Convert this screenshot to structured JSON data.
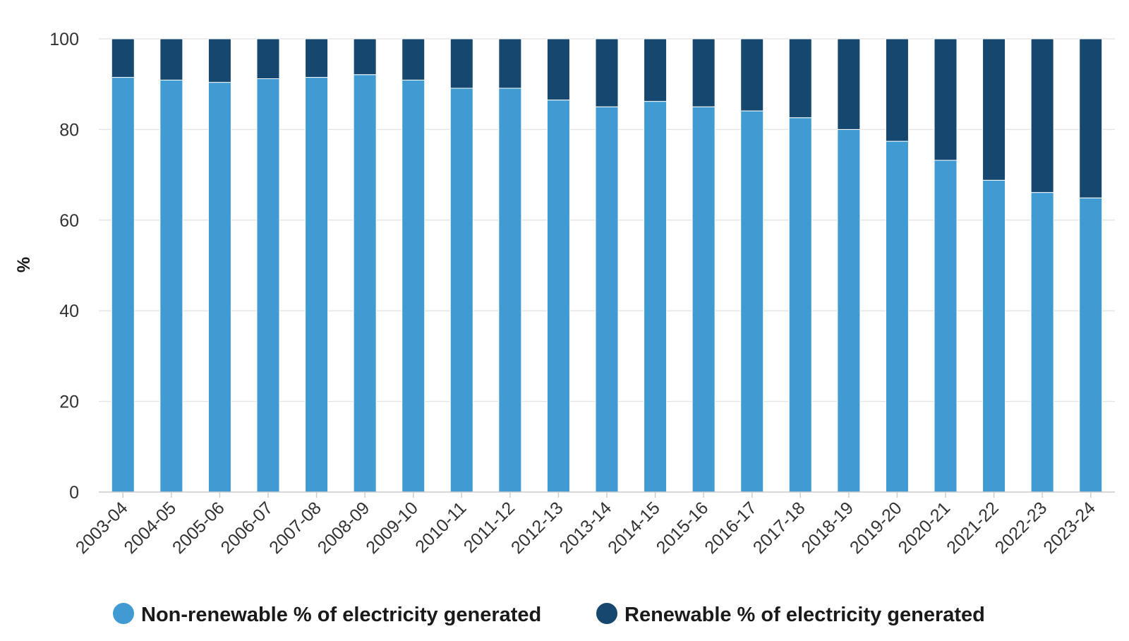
{
  "chart_data": {
    "type": "bar",
    "stacked": true,
    "title": "",
    "xlabel": "",
    "ylabel": "%",
    "ylim": [
      0,
      100
    ],
    "yticks": [
      0,
      20,
      40,
      60,
      80,
      100
    ],
    "grid": true,
    "legend_position": "bottom-center",
    "categories": [
      "2003-04",
      "2004-05",
      "2005-06",
      "2006-07",
      "2007-08",
      "2008-09",
      "2009-10",
      "2010-11",
      "2011-12",
      "2012-13",
      "2013-14",
      "2014-15",
      "2015-16",
      "2016-17",
      "2017-18",
      "2018-19",
      "2019-20",
      "2020-21",
      "2021-22",
      "2022-23",
      "2023-24"
    ],
    "series": [
      {
        "name": "Non-renewable % of electricity generated",
        "color": "#3f9bd1",
        "values": [
          91.5,
          90.9,
          90.4,
          91.2,
          91.5,
          92.1,
          90.9,
          89.1,
          89.1,
          86.5,
          85.0,
          86.2,
          85.0,
          84.1,
          82.6,
          80.0,
          77.4,
          73.2,
          68.8,
          66.1,
          64.9
        ]
      },
      {
        "name": "Renewable % of electricity generated",
        "color": "#15476f",
        "values": [
          8.5,
          9.1,
          9.6,
          8.8,
          8.5,
          7.9,
          9.1,
          10.9,
          10.9,
          13.5,
          15.0,
          13.8,
          15.0,
          15.9,
          17.4,
          20.0,
          22.6,
          26.8,
          31.2,
          33.9,
          35.1
        ]
      }
    ]
  }
}
